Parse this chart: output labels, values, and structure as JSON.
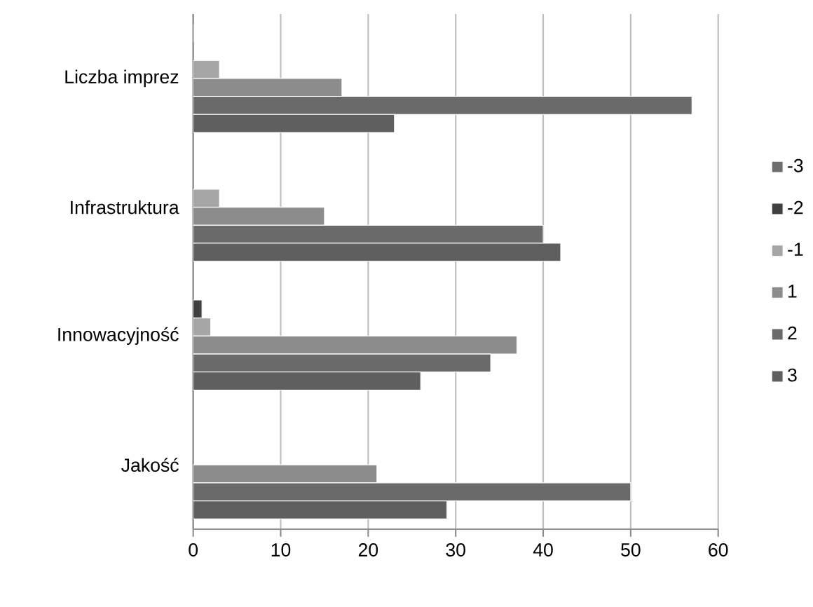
{
  "chart_data": {
    "type": "bar",
    "orientation": "horizontal",
    "categories": [
      "Liczba imprez",
      "Infrastruktura",
      "Innowacyjność",
      "Jakość"
    ],
    "series": [
      {
        "name": "-3",
        "color": "#6e6e6e",
        "values": [
          null,
          null,
          null,
          null
        ]
      },
      {
        "name": "-2",
        "color": "#404040",
        "values": [
          null,
          null,
          1,
          null
        ]
      },
      {
        "name": "-1",
        "color": "#a6a6a6",
        "values": [
          3,
          3,
          2,
          null
        ]
      },
      {
        "name": "1",
        "color": "#8c8c8c",
        "values": [
          17,
          15,
          37,
          21
        ]
      },
      {
        "name": "2",
        "color": "#6a6a6a",
        "values": [
          57,
          40,
          34,
          50
        ]
      },
      {
        "name": "3",
        "color": "#5f5f5f",
        "values": [
          23,
          42,
          26,
          29
        ]
      }
    ],
    "xlim": [
      0,
      60
    ],
    "xticks": [
      0,
      10,
      20,
      30,
      40,
      50,
      60
    ],
    "grid": "x",
    "legend": "right"
  }
}
